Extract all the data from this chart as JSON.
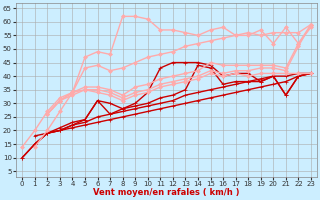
{
  "title": "",
  "xlabel": "Vent moyen/en rafales ( km/h )",
  "background_color": "#cceeff",
  "grid_color": "#aaaaaa",
  "xlim": [
    -0.5,
    23.5
  ],
  "ylim": [
    3,
    67
  ],
  "yticks": [
    5,
    10,
    15,
    20,
    25,
    30,
    35,
    40,
    45,
    50,
    55,
    60,
    65
  ],
  "xticks": [
    0,
    1,
    2,
    3,
    4,
    5,
    6,
    7,
    8,
    9,
    10,
    11,
    12,
    13,
    14,
    15,
    16,
    17,
    18,
    19,
    20,
    21,
    22,
    23
  ],
  "series": [
    {
      "x": [
        0,
        1,
        2,
        3,
        4,
        5,
        6,
        7,
        8,
        9,
        10,
        11,
        12,
        13,
        14,
        15,
        16,
        17,
        18,
        19,
        20,
        21,
        22,
        23
      ],
      "y": [
        10,
        15,
        19,
        20,
        21,
        22,
        23,
        24,
        25,
        26,
        27,
        28,
        29,
        30,
        31,
        32,
        33,
        34,
        35,
        36,
        37,
        38,
        40,
        41
      ],
      "color": "#cc0000",
      "lw": 1.0,
      "marker": "+",
      "ms": 3
    },
    {
      "x": [
        0,
        1,
        2,
        3,
        4,
        5,
        6,
        7,
        8,
        9,
        10,
        11,
        12,
        13,
        14,
        15,
        16,
        17,
        18,
        19,
        20,
        21,
        22,
        23
      ],
      "y": [
        10,
        15,
        19,
        20,
        22,
        23,
        25,
        26,
        27,
        28,
        29,
        30,
        31,
        33,
        34,
        35,
        36,
        37,
        38,
        39,
        40,
        40,
        41,
        41
      ],
      "color": "#cc0000",
      "lw": 1.0,
      "marker": "+",
      "ms": 3
    },
    {
      "x": [
        1,
        2,
        3,
        4,
        5,
        6,
        7,
        8,
        9,
        10,
        11,
        12,
        13,
        14,
        15,
        16,
        17,
        18,
        19,
        20,
        21,
        22,
        23
      ],
      "y": [
        15,
        19,
        20,
        22,
        24,
        31,
        30,
        28,
        29,
        30,
        32,
        33,
        35,
        44,
        43,
        37,
        38,
        38,
        38,
        40,
        33,
        40,
        41
      ],
      "color": "#cc0000",
      "lw": 1.0,
      "marker": "+",
      "ms": 3
    },
    {
      "x": [
        1,
        2,
        3,
        4,
        5,
        6,
        7,
        8,
        9,
        10,
        11,
        12,
        13,
        14,
        15,
        16,
        17,
        18,
        19,
        20,
        21,
        22,
        23
      ],
      "y": [
        18,
        19,
        21,
        23,
        24,
        31,
        26,
        28,
        30,
        34,
        43,
        45,
        45,
        45,
        44,
        40,
        41,
        41,
        38,
        40,
        33,
        40,
        41
      ],
      "color": "#cc0000",
      "lw": 1.0,
      "marker": "+",
      "ms": 3
    },
    {
      "x": [
        2,
        3,
        4,
        5,
        6,
        7,
        8,
        9,
        10,
        11,
        12,
        13,
        14,
        15,
        16,
        17,
        18,
        19,
        20,
        21,
        22,
        23
      ],
      "y": [
        26,
        31,
        34,
        35,
        34,
        33,
        31,
        33,
        34,
        36,
        37,
        38,
        39,
        41,
        40,
        41,
        40,
        41,
        41,
        41,
        41,
        41
      ],
      "color": "#ffaaaa",
      "lw": 1.0,
      "marker": "D",
      "ms": 2
    },
    {
      "x": [
        2,
        3,
        4,
        5,
        6,
        7,
        8,
        9,
        10,
        11,
        12,
        13,
        14,
        15,
        16,
        17,
        18,
        19,
        20,
        21,
        22,
        23
      ],
      "y": [
        26,
        31,
        33,
        35,
        35,
        34,
        32,
        34,
        35,
        37,
        38,
        39,
        40,
        42,
        41,
        42,
        42,
        43,
        43,
        42,
        51,
        59
      ],
      "color": "#ffaaaa",
      "lw": 1.0,
      "marker": "D",
      "ms": 2
    },
    {
      "x": [
        2,
        3,
        4,
        5,
        6,
        7,
        8,
        9,
        10,
        11,
        12,
        13,
        14,
        15,
        16,
        17,
        18,
        19,
        20,
        21,
        22,
        23
      ],
      "y": [
        26,
        31,
        34,
        36,
        36,
        35,
        33,
        36,
        37,
        39,
        40,
        41,
        42,
        45,
        44,
        44,
        44,
        44,
        44,
        43,
        52,
        59
      ],
      "color": "#ffaaaa",
      "lw": 1.0,
      "marker": "D",
      "ms": 2
    },
    {
      "x": [
        1,
        2,
        3,
        4,
        5,
        6,
        7,
        8,
        9,
        10,
        11,
        12,
        13,
        14,
        15,
        16,
        17,
        18,
        19,
        20,
        21,
        22,
        23
      ],
      "y": [
        14,
        20,
        27,
        34,
        47,
        49,
        48,
        62,
        62,
        61,
        57,
        57,
        56,
        55,
        57,
        58,
        55,
        55,
        57,
        52,
        58,
        52,
        58
      ],
      "color": "#ffaaaa",
      "lw": 1.0,
      "marker": "D",
      "ms": 2
    },
    {
      "x": [
        0,
        1,
        2,
        3,
        4,
        5,
        6,
        7,
        8,
        9,
        10,
        11,
        12,
        13,
        14,
        15,
        16,
        17,
        18,
        19,
        20,
        21,
        22,
        23
      ],
      "y": [
        14,
        20,
        27,
        32,
        34,
        43,
        44,
        42,
        43,
        45,
        47,
        48,
        49,
        51,
        52,
        53,
        54,
        55,
        56,
        55,
        56,
        56,
        56,
        59
      ],
      "color": "#ffaaaa",
      "lw": 1.0,
      "marker": "D",
      "ms": 2
    },
    {
      "x": [
        0,
        1,
        2,
        3,
        4,
        5,
        6,
        7,
        8,
        9,
        10,
        11,
        12,
        13,
        14,
        15,
        16,
        17,
        18,
        19,
        20,
        21,
        22,
        23
      ],
      "y": [
        3,
        3,
        3,
        3,
        3,
        3,
        3,
        3,
        3,
        3,
        3,
        3,
        3,
        3,
        3,
        3,
        3,
        3,
        3,
        3,
        3,
        3,
        3,
        3
      ],
      "color": "#cc0000",
      "lw": 0.7,
      "marker": 3,
      "ms": 3,
      "linestyle": "--"
    }
  ]
}
